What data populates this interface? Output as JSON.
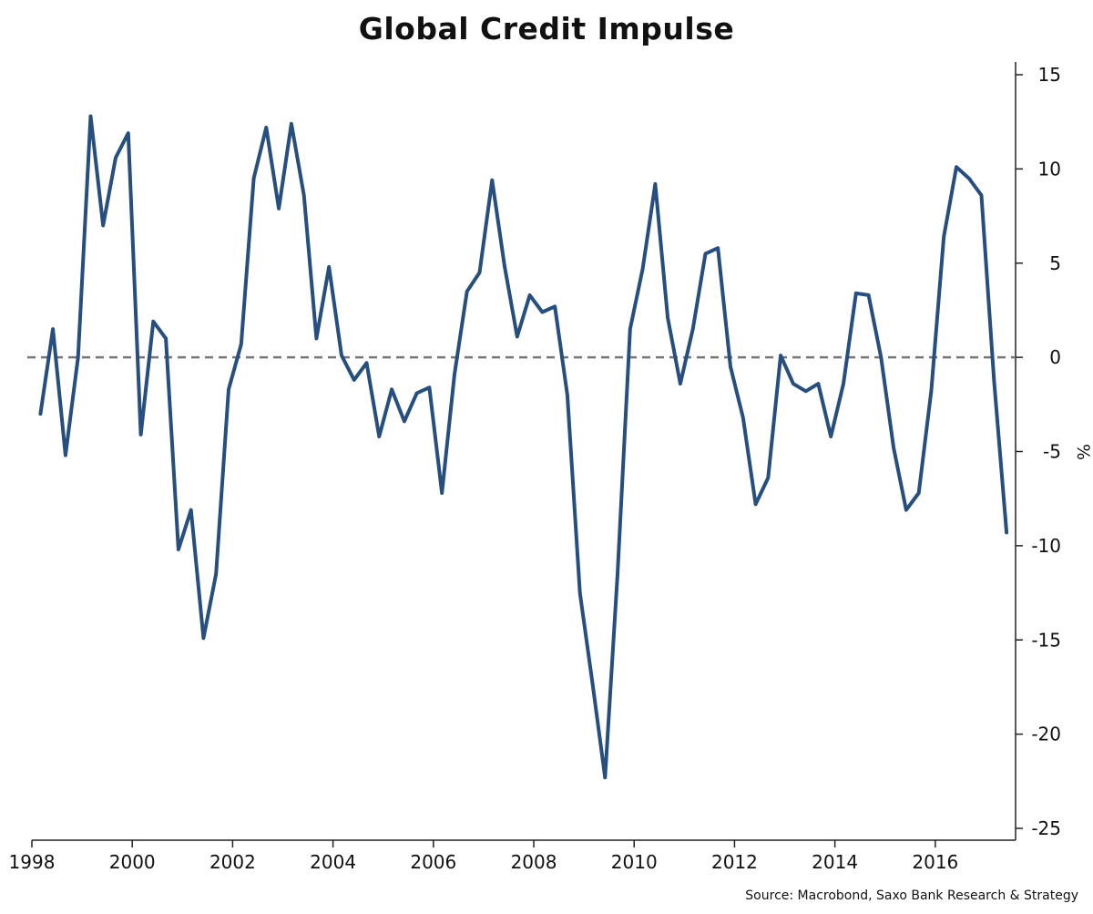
{
  "chart_data": {
    "type": "line",
    "title": "Global Credit Impulse",
    "ylabel": "%",
    "ylim": [
      -25,
      15
    ],
    "xlim": [
      1998.0,
      2017.6
    ],
    "y_ticks": [
      "15",
      "10",
      "5",
      "0",
      "-5",
      "-10",
      "-15",
      "-20",
      "-25"
    ],
    "y_tick_values": [
      15,
      10,
      5,
      0,
      -5,
      -10,
      -15,
      -20,
      -25
    ],
    "x_ticks": [
      "1998",
      "2000",
      "2002",
      "2004",
      "2006",
      "2008",
      "2010",
      "2012",
      "2014",
      "2016"
    ],
    "x_tick_values": [
      1998,
      2000,
      2002,
      2004,
      2006,
      2008,
      2010,
      2012,
      2014,
      2016
    ],
    "zero_line": "dashed",
    "grid": false,
    "colors": {
      "series": "#264f80",
      "zero_line": "#777777",
      "axis": "#222222"
    },
    "series": [
      {
        "x": [
          1998.17,
          1998.42,
          1998.67,
          1998.92,
          1999.17,
          1999.42,
          1999.67,
          1999.92,
          2000.17,
          2000.42,
          2000.67,
          2000.92,
          2001.17,
          2001.42,
          2001.67,
          2001.92,
          2002.17,
          2002.42,
          2002.67,
          2002.92,
          2003.17,
          2003.42,
          2003.67,
          2003.92,
          2004.17,
          2004.42,
          2004.67,
          2004.92,
          2005.17,
          2005.42,
          2005.67,
          2005.92,
          2006.17,
          2006.42,
          2006.67,
          2006.92,
          2007.17,
          2007.42,
          2007.67,
          2007.92,
          2008.17,
          2008.42,
          2008.67,
          2008.92,
          2009.17,
          2009.42,
          2009.67,
          2009.92,
          2010.17,
          2010.42,
          2010.67,
          2010.92,
          2011.17,
          2011.42,
          2011.67,
          2011.92,
          2012.17,
          2012.42,
          2012.67,
          2012.92,
          2013.17,
          2013.42,
          2013.67,
          2013.92,
          2014.17,
          2014.42,
          2014.67,
          2014.92,
          2015.17,
          2015.42,
          2015.67,
          2015.92,
          2016.17,
          2016.42,
          2016.67,
          2016.92,
          2017.17,
          2017.42
        ],
        "values": [
          -3.0,
          1.5,
          -5.2,
          0.0,
          12.8,
          7.0,
          10.6,
          11.9,
          -4.1,
          1.9,
          1.0,
          -10.2,
          -8.1,
          -14.9,
          -11.5,
          -1.7,
          0.7,
          9.5,
          12.2,
          7.9,
          12.4,
          8.6,
          1.0,
          4.8,
          0.1,
          -1.2,
          -0.3,
          -4.2,
          -1.7,
          -3.4,
          -1.9,
          -1.6,
          -7.2,
          -0.9,
          3.5,
          4.5,
          9.4,
          4.8,
          1.1,
          3.3,
          2.4,
          2.7,
          -2.0,
          -12.5,
          -17.3,
          -22.3,
          -11.5,
          1.5,
          4.7,
          9.2,
          2.1,
          -1.4,
          1.5,
          5.5,
          5.8,
          -0.5,
          -3.2,
          -7.8,
          -6.4,
          0.1,
          -1.4,
          -1.8,
          -1.4,
          -4.2,
          -1.4,
          3.4,
          3.3,
          0.0,
          -4.8,
          -8.1,
          -7.2,
          -1.8,
          6.4,
          10.1,
          9.5,
          8.6,
          -1.2,
          -9.3
        ]
      }
    ]
  },
  "source_note": "Source: Macrobond, Saxo Bank Research & Strategy"
}
